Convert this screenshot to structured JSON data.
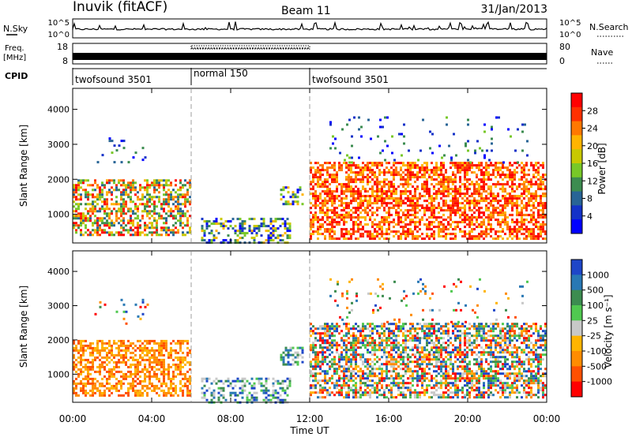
{
  "header": {
    "station": "Inuvik (fitACF)",
    "beam": "Beam 11",
    "date": "31/Jan/2013"
  },
  "summary_panels": {
    "nsky": {
      "label": "N.Sky",
      "ticks": [
        "10^5",
        "10^0"
      ],
      "right_ticks": [
        "10^5",
        "10^0"
      ],
      "right_label": "N.Search"
    },
    "freq": {
      "label_line1": "Freq.",
      "label_line2": "[MHz]",
      "ticks": [
        "18",
        "8"
      ],
      "right_ticks": [
        "80",
        "0"
      ],
      "right_label": "Nave"
    },
    "cpid": {
      "label": "CPID",
      "segments": [
        {
          "name": "twofsound 3501",
          "start_hour": 0,
          "end_hour": 6
        },
        {
          "name": "normal 150",
          "start_hour": 6,
          "end_hour": 12
        },
        {
          "name": "twofsound 3501",
          "start_hour": 12,
          "end_hour": 24
        }
      ]
    }
  },
  "axes": {
    "x_ticks": [
      "00:00",
      "04:00",
      "08:00",
      "12:00",
      "16:00",
      "20:00",
      "00:00"
    ],
    "x_label": "Time UT",
    "y_label": "Slant Range [km]",
    "y_ticks": [
      "1000",
      "2000",
      "3000",
      "4000"
    ]
  },
  "colorbars": {
    "power": {
      "label": "Power [dB]",
      "ticks": [
        "28",
        "24",
        "20",
        "16",
        "12",
        "8",
        "4"
      ],
      "colors": [
        "#ff0000",
        "#ff3000",
        "#ff7800",
        "#ffb400",
        "#c8c800",
        "#78c828",
        "#3c8c50",
        "#286496",
        "#1432c8",
        "#0000ff"
      ]
    },
    "velocity": {
      "label": "Velocity [m s⁻¹]",
      "ticks": [
        "1000",
        "500",
        "100",
        "25",
        "-25",
        "-100",
        "-500",
        "-1000"
      ],
      "colors": [
        "#1e46c8",
        "#2878b4",
        "#3c8c50",
        "#50c850",
        "#c8c8c8",
        "#ffb400",
        "#ff8c00",
        "#ff5000",
        "#ff0000"
      ]
    }
  },
  "chart_data": {
    "type": "heatmap",
    "title": "Inuvik (fitACF)   Beam 11   31/Jan/2013",
    "xlabel": "Time UT",
    "ylabel": "Slant Range [km]",
    "xlim_hours": [
      0,
      24
    ],
    "ylim_km": [
      180,
      4600
    ],
    "cpid_boundaries_hours": [
      6,
      12
    ],
    "power_regions": [
      {
        "t": [
          0,
          6
        ],
        "r": [
          400,
          2000
        ],
        "level_db": "12-28"
      },
      {
        "t": [
          7,
          11
        ],
        "r": [
          200,
          900
        ],
        "level_db": "4-20"
      },
      {
        "t": [
          10.5,
          11.7
        ],
        "r": [
          1300,
          1800
        ],
        "level_db": "8-20"
      },
      {
        "t": [
          12,
          24
        ],
        "r": [
          300,
          2500
        ],
        "level_db": "16-28"
      }
    ],
    "velocity_regions": [
      {
        "t": [
          0,
          6
        ],
        "r": [
          400,
          2000
        ],
        "level": "-25 to -500"
      },
      {
        "t": [
          7,
          11
        ],
        "r": [
          200,
          900
        ],
        "level": "25 to 500"
      },
      {
        "t": [
          10.5,
          11.7
        ],
        "r": [
          1300,
          1800
        ],
        "level": "100 to 1000"
      },
      {
        "t": [
          12,
          24
        ],
        "r": [
          300,
          2500
        ],
        "level": "-500 to 500"
      }
    ]
  }
}
